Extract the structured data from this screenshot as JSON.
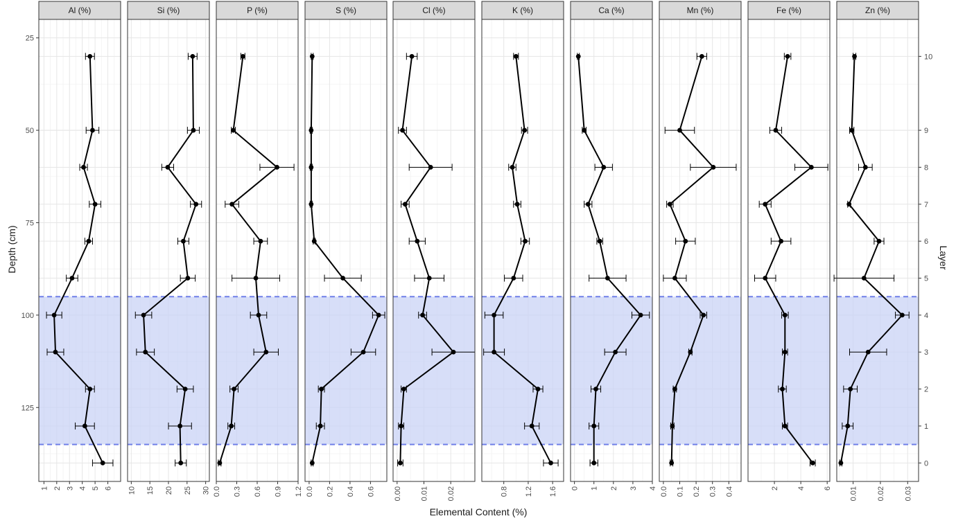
{
  "chart_data": {
    "type": "line",
    "xlabel": "Elemental Content (%)",
    "ylabel": "Depth (cm)",
    "y2label": "Layer",
    "ylim": [
      20,
      145
    ],
    "yticks": [
      25,
      50,
      75,
      100,
      125
    ],
    "layers": [
      10,
      9,
      8,
      7,
      6,
      5,
      4,
      3,
      2,
      1,
      0
    ],
    "depths": [
      30,
      50,
      60,
      70,
      80,
      90,
      100,
      110,
      120,
      130,
      140
    ],
    "highlight_band": [
      95,
      135
    ],
    "panels": [
      {
        "title": "Al (%)",
        "xlim": [
          0.6,
          7.0
        ],
        "ticks": [
          1,
          2,
          3,
          4,
          5,
          6
        ],
        "tick_labels": [
          "1",
          "2",
          "3",
          "4",
          "5",
          "6"
        ],
        "values": [
          4.6,
          4.8,
          4.1,
          5.0,
          4.5,
          3.2,
          1.8,
          1.9,
          4.6,
          4.2,
          5.6
        ],
        "errors": [
          0.35,
          0.5,
          0.3,
          0.45,
          0.3,
          0.45,
          0.6,
          0.65,
          0.35,
          0.75,
          0.8
        ]
      },
      {
        "title": "Si (%)",
        "xlim": [
          9,
          31
        ],
        "ticks": [
          10,
          15,
          20,
          25,
          30
        ],
        "tick_labels": [
          "10",
          "15",
          "20",
          "25",
          "30"
        ],
        "values": [
          26.5,
          26.7,
          19.8,
          27.4,
          24.0,
          25.2,
          13.3,
          13.8,
          24.5,
          23.1,
          23.3
        ],
        "errors": [
          1.2,
          1.6,
          1.6,
          1.5,
          1.5,
          2.0,
          2.2,
          2.4,
          2.2,
          3.1,
          1.5
        ]
      },
      {
        "title": "P (%)",
        "xlim": [
          0.0,
          1.2
        ],
        "ticks": [
          0.0,
          0.3,
          0.6,
          0.9,
          1.2
        ],
        "tick_labels": [
          "0.0",
          "0.3",
          "0.6",
          "0.9",
          "1.2"
        ],
        "values": [
          0.39,
          0.25,
          0.89,
          0.23,
          0.65,
          0.58,
          0.62,
          0.73,
          0.26,
          0.22,
          0.05
        ],
        "errors": [
          0.03,
          0.03,
          0.25,
          0.1,
          0.1,
          0.35,
          0.12,
          0.18,
          0.06,
          0.05,
          0.02
        ]
      },
      {
        "title": "S (%)",
        "xlim": [
          -0.04,
          0.76
        ],
        "ticks": [
          0.0,
          0.2,
          0.4,
          0.6
        ],
        "tick_labels": [
          "0.0",
          "0.2",
          "0.4",
          "0.6"
        ],
        "values": [
          0.03,
          0.02,
          0.02,
          0.02,
          0.05,
          0.33,
          0.68,
          0.53,
          0.12,
          0.11,
          0.03
        ],
        "errors": [
          0.01,
          0.01,
          0.01,
          0.01,
          0.01,
          0.18,
          0.06,
          0.12,
          0.03,
          0.04,
          0.01
        ]
      },
      {
        "title": "Cl (%)",
        "xlim": [
          -0.0015,
          0.029
        ],
        "ticks": [
          0.0,
          0.01,
          0.02
        ],
        "tick_labels": [
          "0.00",
          "0.01",
          "0.02"
        ],
        "values": [
          0.0055,
          0.002,
          0.0125,
          0.003,
          0.0075,
          0.012,
          0.0095,
          0.021,
          0.0025,
          0.0015,
          0.0012
        ],
        "errors": [
          0.002,
          0.0015,
          0.008,
          0.0015,
          0.003,
          0.0055,
          0.0015,
          0.008,
          0.001,
          0.001,
          0.001
        ]
      },
      {
        "title": "K (%)",
        "xlim": [
          0.44,
          1.78
        ],
        "ticks": [
          0.8,
          1.2,
          1.6
        ],
        "tick_labels": [
          "0.8",
          "1.2",
          "1.6"
        ],
        "values": [
          1.0,
          1.14,
          0.94,
          1.02,
          1.15,
          0.96,
          0.64,
          0.64,
          1.36,
          1.26,
          1.57
        ],
        "errors": [
          0.04,
          0.05,
          0.06,
          0.06,
          0.07,
          0.15,
          0.15,
          0.17,
          0.08,
          0.12,
          0.12
        ]
      },
      {
        "title": "Ca (%)",
        "xlim": [
          -0.2,
          4.0
        ],
        "ticks": [
          0,
          1,
          2,
          3,
          4
        ],
        "tick_labels": [
          "0",
          "1",
          "2",
          "3",
          "4"
        ],
        "values": [
          0.2,
          0.5,
          1.5,
          0.7,
          1.3,
          1.7,
          3.4,
          2.1,
          1.1,
          1.0,
          1.0
        ],
        "errors": [
          0.05,
          0.1,
          0.45,
          0.2,
          0.15,
          0.95,
          0.45,
          0.55,
          0.25,
          0.25,
          0.2
        ]
      },
      {
        "title": "Mn (%)",
        "xlim": [
          -0.025,
          0.475
        ],
        "ticks": [
          0.0,
          0.1,
          0.2,
          0.3,
          0.4
        ],
        "tick_labels": [
          "0.0",
          "0.1",
          "0.2",
          "0.3",
          "0.4"
        ],
        "values": [
          0.235,
          0.1,
          0.305,
          0.04,
          0.135,
          0.07,
          0.245,
          0.165,
          0.07,
          0.055,
          0.05
        ],
        "errors": [
          0.03,
          0.09,
          0.14,
          0.02,
          0.06,
          0.07,
          0.02,
          0.01,
          0.01,
          0.01,
          0.008
        ]
      },
      {
        "title": "Fe (%)",
        "xlim": [
          0.0,
          6.2
        ],
        "ticks": [
          2,
          4,
          6
        ],
        "tick_labels": [
          "2",
          "4",
          "6"
        ],
        "values": [
          3.0,
          2.1,
          4.8,
          1.3,
          2.5,
          1.3,
          2.8,
          2.8,
          2.6,
          2.8,
          4.9
        ],
        "errors": [
          0.25,
          0.45,
          1.25,
          0.45,
          0.75,
          0.8,
          0.25,
          0.2,
          0.3,
          0.2,
          0.2
        ]
      },
      {
        "title": "Zn (%)",
        "xlim": [
          0.004,
          0.034
        ],
        "ticks": [
          0.01,
          0.02,
          0.03
        ],
        "tick_labels": [
          "0.01",
          "0.02",
          "0.03"
        ],
        "values": [
          0.0105,
          0.0095,
          0.0145,
          0.0085,
          0.0195,
          0.014,
          0.028,
          0.0155,
          0.009,
          0.008,
          0.0055
        ],
        "errors": [
          0.0005,
          0.0008,
          0.0025,
          0.0005,
          0.0018,
          0.011,
          0.0025,
          0.0068,
          0.0025,
          0.002,
          0.0004
        ]
      }
    ],
    "grid": true
  }
}
